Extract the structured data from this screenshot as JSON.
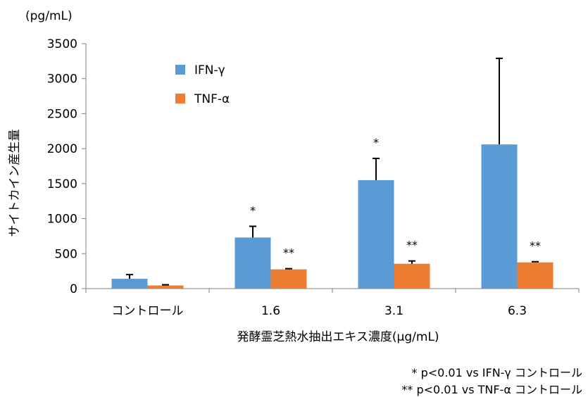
{
  "chart_data": {
    "type": "bar",
    "unit_label": "(pg/mL)",
    "ylabel": "サイトカイン産生量",
    "xlabel": "発酵霊芝熱水抽出エキス濃度(μg/mL)",
    "categories": [
      "コントロール",
      "1.6",
      "3.1",
      "6.3"
    ],
    "ylim": [
      0,
      3500
    ],
    "yticks": [
      0,
      500,
      1000,
      1500,
      2000,
      2500,
      3000,
      3500
    ],
    "ytick_labels": [
      "0",
      "500",
      "1000",
      "1500",
      "2000",
      "2500",
      "3000",
      "3500"
    ],
    "series": [
      {
        "name": "IFN-γ",
        "color": "#5b9bd5",
        "values": [
          140,
          730,
          1550,
          2060
        ],
        "errors": [
          60,
          160,
          310,
          1230
        ],
        "significance": [
          "",
          "*",
          "*",
          ""
        ]
      },
      {
        "name": "TNF-α",
        "color": "#ed7d31",
        "values": [
          45,
          275,
          355,
          375
        ],
        "errors": [
          10,
          10,
          40,
          10
        ],
        "significance": [
          "",
          "**",
          "**",
          "**"
        ]
      }
    ],
    "legend_position": "top-left",
    "grid": false
  },
  "footnotes": [
    "* p<0.01 vs IFN-γ コントロール",
    "** p<0.01 vs TNF-α コントロール"
  ]
}
